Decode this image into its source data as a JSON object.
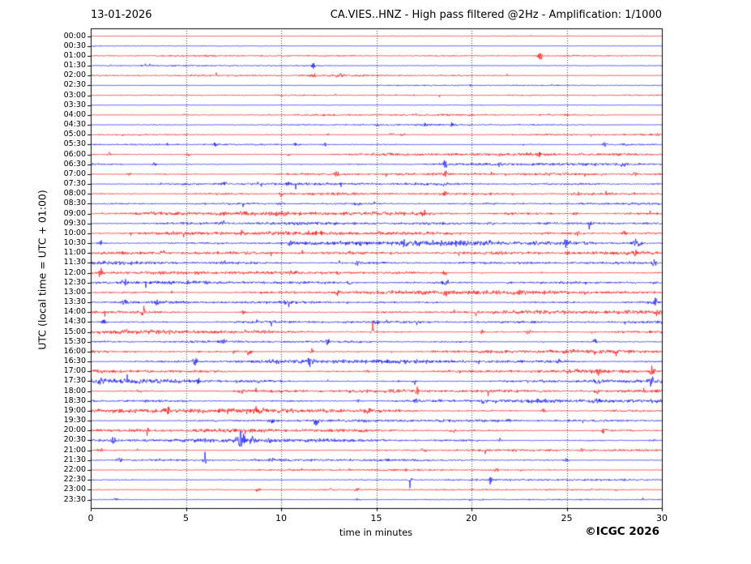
{
  "header": {
    "date": "13-01-2026",
    "title": "CA.VIES..HNZ - High pass filtered @2Hz - Amplification: 1/1000"
  },
  "footer": {
    "copyright": "©ICGC 2026"
  },
  "chart_data": {
    "type": "line",
    "subtype": "helicorder-dayplot",
    "title": "CA.VIES..HNZ - High pass filtered @2Hz - Amplification: 1/1000",
    "date": "13-01-2026",
    "xlabel": "time in minutes",
    "ylabel": "UTC (local time = UTC + 01:00)",
    "xlim": [
      0,
      30
    ],
    "xticks": [
      0,
      5,
      10,
      15,
      20,
      25,
      30
    ],
    "grid": {
      "vertical_dotted_every_minutes": 5,
      "color": "#3a3a3a"
    },
    "colors": {
      "even_rows": "#ff0000",
      "odd_rows": "#0000ff",
      "frame": "#000000"
    },
    "minutes_per_row": 30,
    "rows": [
      {
        "label": "00:00",
        "amp": 0.4,
        "events": []
      },
      {
        "label": "00:30",
        "amp": 0.4,
        "events": []
      },
      {
        "label": "01:00",
        "amp": 0.9,
        "events": [
          [
            23.6,
            3
          ]
        ]
      },
      {
        "label": "01:30",
        "amp": 0.7,
        "events": [
          [
            11.7,
            5,
            0.06
          ]
        ]
      },
      {
        "label": "02:00",
        "amp": 1.1,
        "events": [
          [
            11.7,
            2.5
          ],
          [
            13,
            1.5
          ]
        ]
      },
      {
        "label": "02:30",
        "amp": 0.6,
        "events": [
          [
            20,
            1.2
          ]
        ]
      },
      {
        "label": "03:00",
        "amp": 0.8,
        "events": []
      },
      {
        "label": "03:30",
        "amp": 0.5,
        "events": []
      },
      {
        "label": "04:00",
        "amp": 0.9,
        "events": [
          [
            5,
            1
          ]
        ]
      },
      {
        "label": "04:30",
        "amp": 0.8,
        "events": [
          [
            15,
            1.5
          ],
          [
            17.6,
            2
          ],
          [
            19,
            1.5
          ]
        ]
      },
      {
        "label": "05:00",
        "amp": 1.0,
        "events": [
          [
            12.5,
            1.2
          ],
          [
            15.8,
            2.5
          ],
          [
            16.4,
            1.5
          ]
        ]
      },
      {
        "label": "05:30",
        "amp": 1.0,
        "events": [
          [
            6.5,
            2.2
          ],
          [
            10.8,
            1.5
          ],
          [
            12.3,
            1.5
          ],
          [
            27,
            2
          ],
          [
            28,
            1.8
          ]
        ]
      },
      {
        "label": "06:00",
        "amp": 1.4,
        "events": [
          [
            1,
            1.5
          ],
          [
            5.1,
            1.8
          ],
          [
            10.4,
            1.5
          ],
          [
            23.5,
            2
          ]
        ]
      },
      {
        "label": "06:30",
        "amp": 1.4,
        "events": [
          [
            3.3,
            1.8
          ],
          [
            18.6,
            3.5
          ],
          [
            21.5,
            1.5
          ],
          [
            28,
            1.8
          ]
        ]
      },
      {
        "label": "07:00",
        "amp": 1.8,
        "events": [
          [
            2,
            2
          ],
          [
            12.9,
            2.5
          ],
          [
            18.6,
            2.5
          ],
          [
            28.6,
            2.5
          ]
        ]
      },
      {
        "label": "07:30",
        "amp": 1.4,
        "events": [
          [
            7,
            1.8
          ],
          [
            10.4,
            1.8
          ],
          [
            18.5,
            1.5
          ]
        ]
      },
      {
        "label": "08:00",
        "amp": 1.8,
        "events": [
          [
            10,
            2
          ],
          [
            18.6,
            2.5
          ],
          [
            25.5,
            1.8
          ]
        ]
      },
      {
        "label": "08:30",
        "amp": 1.2,
        "events": [
          [
            10,
            1.6
          ],
          [
            14,
            1.4
          ]
        ]
      },
      {
        "label": "09:00",
        "amp": 2.0,
        "events": [
          [
            7,
            2.2
          ],
          [
            17.5,
            2
          ],
          [
            25.5,
            2
          ]
        ]
      },
      {
        "label": "09:30",
        "amp": 1.7,
        "events": [
          [
            7,
            3.5
          ],
          [
            21,
            2
          ],
          [
            26.2,
            2.5
          ]
        ]
      },
      {
        "label": "10:00",
        "amp": 2.0,
        "events": [
          [
            8,
            2.2
          ],
          [
            25.6,
            3
          ],
          [
            28,
            2.2
          ]
        ]
      },
      {
        "label": "10:30",
        "amp": 2.3,
        "events": [
          [
            0.5,
            3
          ],
          [
            10.5,
            2.5
          ],
          [
            16.5,
            2.5
          ],
          [
            21,
            2.5
          ],
          [
            25,
            4
          ],
          [
            28.7,
            3.5,
            0.2
          ]
        ]
      },
      {
        "label": "11:00",
        "amp": 2.0,
        "events": [
          [
            3.8,
            2
          ],
          [
            25,
            3.2
          ],
          [
            28.6,
            2.5
          ]
        ]
      },
      {
        "label": "11:30",
        "amp": 1.9,
        "events": [
          [
            7,
            2.5
          ],
          [
            14,
            2.5
          ],
          [
            29.6,
            3.5
          ]
        ]
      },
      {
        "label": "12:00",
        "amp": 1.8,
        "events": [
          [
            0.5,
            4
          ],
          [
            13,
            2.5
          ],
          [
            18.6,
            2.2
          ]
        ]
      },
      {
        "label": "12:30",
        "amp": 1.7,
        "events": [
          [
            1.8,
            4
          ],
          [
            13.6,
            2.2
          ],
          [
            18.6,
            2.2
          ],
          [
            22,
            2
          ]
        ]
      },
      {
        "label": "13:00",
        "amp": 2.0,
        "events": [
          [
            13,
            3
          ],
          [
            18.6,
            3
          ],
          [
            22.6,
            2.2
          ]
        ]
      },
      {
        "label": "13:30",
        "amp": 1.8,
        "events": [
          [
            1.8,
            2.5
          ],
          [
            3.5,
            2.2
          ],
          [
            10.2,
            2
          ],
          [
            29.6,
            4
          ]
        ]
      },
      {
        "label": "14:00",
        "amp": 2.0,
        "events": [
          [
            2.8,
            4
          ],
          [
            8,
            2
          ],
          [
            29.8,
            2.5
          ]
        ]
      },
      {
        "label": "14:30",
        "amp": 1.6,
        "events": [
          [
            0.7,
            3.5
          ],
          [
            15,
            2
          ]
        ]
      },
      {
        "label": "15:00",
        "amp": 1.8,
        "events": [
          [
            14.8,
            2
          ],
          [
            20.6,
            2.5
          ],
          [
            23,
            2.2
          ]
        ]
      },
      {
        "label": "15:30",
        "amp": 1.6,
        "events": [
          [
            7,
            2.2
          ],
          [
            12.5,
            2
          ],
          [
            26.5,
            2.5
          ]
        ]
      },
      {
        "label": "16:00",
        "amp": 1.8,
        "events": [
          [
            7.6,
            3
          ],
          [
            8.3,
            3.5
          ],
          [
            11.6,
            2.5
          ]
        ]
      },
      {
        "label": "16:30",
        "amp": 2.0,
        "events": [
          [
            5.5,
            3.5
          ],
          [
            11.5,
            3.5
          ],
          [
            24.6,
            2.5
          ]
        ]
      },
      {
        "label": "17:00",
        "amp": 2.2,
        "events": [
          [
            14.5,
            2.5
          ],
          [
            26.6,
            3.5
          ],
          [
            29.5,
            4
          ]
        ]
      },
      {
        "label": "17:30",
        "amp": 2.2,
        "events": [
          [
            0.5,
            2.5
          ],
          [
            5.6,
            2.5
          ],
          [
            17,
            2.5
          ],
          [
            26.6,
            3.5
          ],
          [
            29.5,
            3
          ]
        ]
      },
      {
        "label": "18:00",
        "amp": 2.0,
        "events": [
          [
            2.5,
            2.5
          ],
          [
            7.9,
            3
          ],
          [
            17.1,
            3.5
          ],
          [
            26.6,
            2.5
          ]
        ]
      },
      {
        "label": "18:30",
        "amp": 1.9,
        "events": [
          [
            14,
            2.5
          ],
          [
            17.1,
            3.5
          ],
          [
            20.6,
            2.5
          ],
          [
            26.6,
            3.5
          ]
        ]
      },
      {
        "label": "19:00",
        "amp": 2.2,
        "events": [
          [
            4,
            4.5
          ],
          [
            8.7,
            3.5
          ],
          [
            14.6,
            2.5
          ],
          [
            23.8,
            2.5
          ]
        ]
      },
      {
        "label": "19:30",
        "amp": 1.6,
        "events": [
          [
            9.5,
            3.5
          ],
          [
            11.8,
            3.5
          ],
          [
            22,
            2
          ]
        ]
      },
      {
        "label": "20:00",
        "amp": 1.6,
        "events": [
          [
            3,
            2
          ],
          [
            19,
            2.5
          ],
          [
            27,
            2.5
          ]
        ]
      },
      {
        "label": "20:30",
        "amp": 1.8,
        "events": [
          [
            1.2,
            3.5
          ],
          [
            7.9,
            7,
            0.15
          ],
          [
            8.5,
            5
          ],
          [
            9.4,
            2.5
          ],
          [
            21.5,
            2
          ],
          [
            29.5,
            2.5
          ]
        ]
      },
      {
        "label": "21:00",
        "amp": 1.1,
        "events": [
          [
            0.5,
            2.5
          ],
          [
            17.5,
            1.6
          ],
          [
            25.8,
            1.5
          ]
        ]
      },
      {
        "label": "21:30",
        "amp": 1.3,
        "events": [
          [
            1.5,
            2.8
          ],
          [
            6,
            2.2
          ],
          [
            9.5,
            1.8
          ],
          [
            25,
            1.8
          ]
        ]
      },
      {
        "label": "22:00",
        "amp": 0.9,
        "events": [
          [
            21.3,
            1.5
          ]
        ]
      },
      {
        "label": "22:30",
        "amp": 0.9,
        "events": [
          [
            16.8,
            1.5
          ],
          [
            21,
            4,
            0.05
          ]
        ]
      },
      {
        "label": "23:00",
        "amp": 0.8,
        "events": [
          [
            8.8,
            2
          ],
          [
            12.6,
            1.5
          ],
          [
            14,
            1.5
          ]
        ]
      },
      {
        "label": "23:30",
        "amp": 0.7,
        "events": [
          [
            1.3,
            1.8
          ],
          [
            14,
            1.8
          ],
          [
            20.6,
            1.2
          ]
        ]
      }
    ]
  }
}
